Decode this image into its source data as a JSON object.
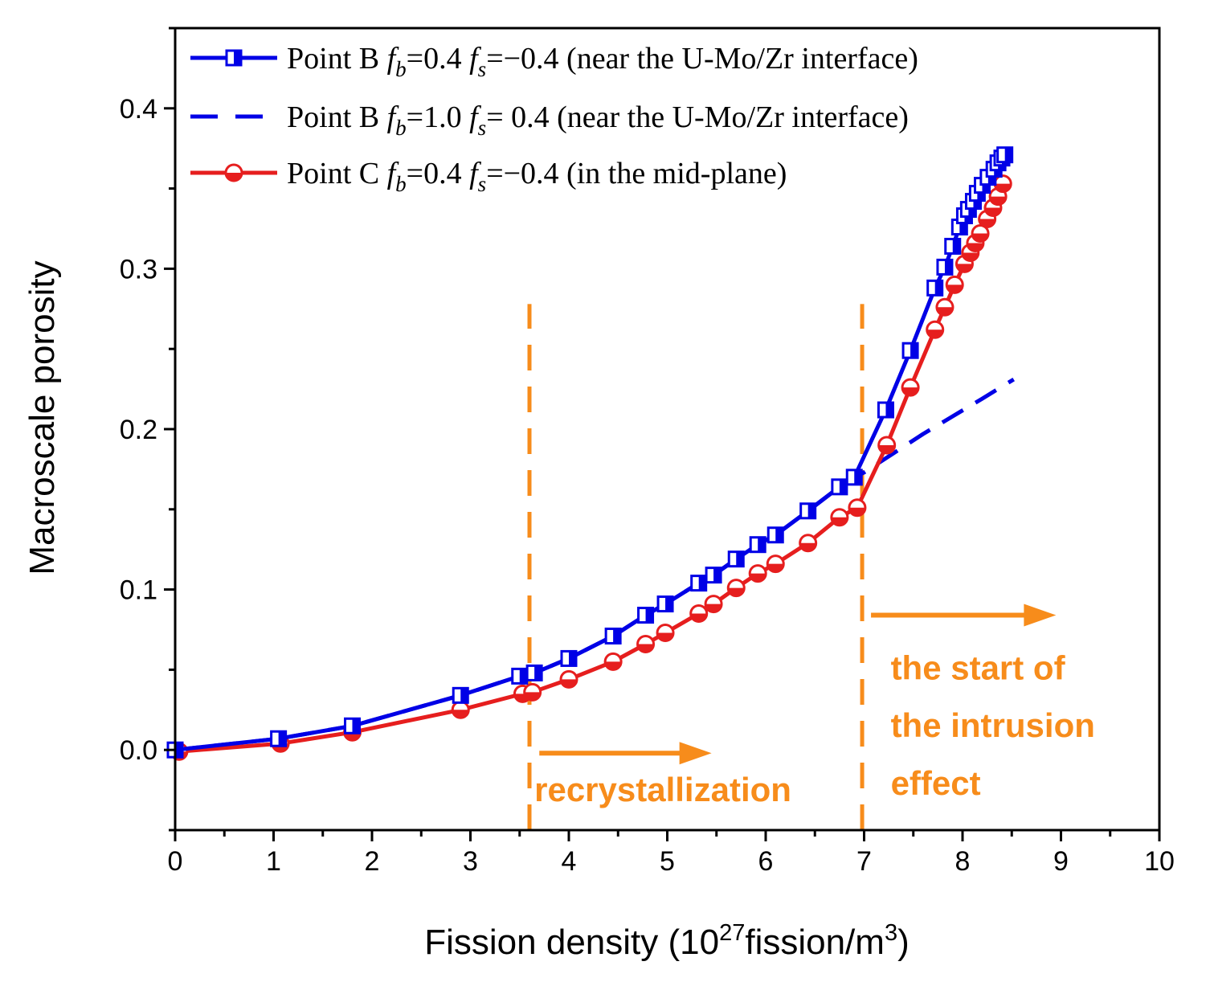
{
  "chart_data": {
    "type": "line",
    "xlabel": "Fission density (10",
    "xlabel_sup": "27",
    "xlabel_rest": "fission/m",
    "xlabel_sup2": "3",
    "xlabel_end": ")",
    "ylabel": "Macroscale porosity",
    "xlim": [
      0,
      10
    ],
    "ylim": [
      -0.05,
      0.45
    ],
    "xticks": [
      "0",
      "1",
      "2",
      "3",
      "4",
      "5",
      "6",
      "7",
      "8",
      "9",
      "10"
    ],
    "yticks": [
      "0.0",
      "0.1",
      "0.2",
      "0.3",
      "0.4"
    ],
    "series": [
      {
        "name": "point-b-fb04",
        "legend_prefix": "Point B ",
        "legend_mid": "=0.4 ",
        "legend_suffix": "=−0.4 (near the U-Mo/Zr interface)",
        "color": "#0000e6",
        "style": "solid",
        "marker": "square-half",
        "x": [
          0.0,
          1.05,
          1.8,
          2.9,
          3.5,
          3.65,
          4.0,
          4.45,
          4.78,
          4.98,
          5.32,
          5.47,
          5.7,
          5.92,
          6.1,
          6.43,
          6.75,
          6.9,
          7.22,
          7.47,
          7.72,
          7.82,
          7.9,
          7.97,
          8.02,
          8.06,
          8.11,
          8.15,
          8.2,
          8.26,
          8.32,
          8.36,
          8.4,
          8.43
        ],
        "y": [
          0.0,
          0.007,
          0.015,
          0.034,
          0.046,
          0.048,
          0.057,
          0.071,
          0.084,
          0.091,
          0.104,
          0.109,
          0.119,
          0.128,
          0.134,
          0.149,
          0.164,
          0.17,
          0.212,
          0.249,
          0.288,
          0.301,
          0.314,
          0.326,
          0.333,
          0.337,
          0.342,
          0.347,
          0.352,
          0.357,
          0.362,
          0.366,
          0.369,
          0.371
        ]
      },
      {
        "name": "point-b-fb10",
        "legend_prefix": "Point B ",
        "legend_mid": "=1.0 ",
        "legend_suffix": "=  0.4 (near the U-Mo/Zr interface)",
        "color": "#0000e6",
        "style": "dashed",
        "marker": "none",
        "x": [
          0.0,
          1.05,
          1.8,
          2.9,
          3.5,
          3.65,
          4.0,
          4.45,
          4.78,
          4.98,
          5.32,
          5.47,
          5.7,
          5.92,
          6.1,
          6.43,
          6.75,
          6.9,
          7.0,
          7.3,
          7.6,
          7.9,
          8.2,
          8.52
        ],
        "y": [
          0.0,
          0.007,
          0.015,
          0.034,
          0.046,
          0.048,
          0.057,
          0.071,
          0.084,
          0.091,
          0.104,
          0.109,
          0.119,
          0.128,
          0.134,
          0.149,
          0.164,
          0.17,
          0.173,
          0.185,
          0.197,
          0.208,
          0.219,
          0.231
        ]
      },
      {
        "name": "point-c-fb04",
        "legend_prefix": "Point C ",
        "legend_mid": "=0.4 ",
        "legend_suffix": "=−0.4 (in the mid-plane)",
        "color": "#e61e1e",
        "style": "solid",
        "marker": "circle-half",
        "x": [
          0.04,
          1.07,
          1.8,
          2.9,
          3.53,
          3.63,
          4.0,
          4.45,
          4.78,
          4.98,
          5.32,
          5.47,
          5.7,
          5.92,
          6.1,
          6.43,
          6.75,
          6.93,
          7.23,
          7.47,
          7.72,
          7.82,
          7.92,
          8.02,
          8.08,
          8.13,
          8.18,
          8.25,
          8.31,
          8.36,
          8.41
        ],
        "y": [
          -0.001,
          0.004,
          0.011,
          0.025,
          0.035,
          0.036,
          0.044,
          0.055,
          0.066,
          0.073,
          0.085,
          0.091,
          0.101,
          0.11,
          0.116,
          0.129,
          0.145,
          0.151,
          0.19,
          0.226,
          0.262,
          0.276,
          0.29,
          0.303,
          0.31,
          0.316,
          0.322,
          0.331,
          0.338,
          0.345,
          0.353
        ]
      }
    ],
    "vlines": [
      {
        "x": 3.6,
        "y_from": -0.05,
        "y_to": 0.278,
        "color": "#f78c1b"
      },
      {
        "x": 6.98,
        "y_from": -0.05,
        "y_to": 0.278,
        "color": "#f78c1b"
      }
    ],
    "arrows": [
      {
        "x_from": 3.7,
        "x_to": 5.45,
        "y": -0.002,
        "color": "#f78c1b"
      },
      {
        "x_from": 7.07,
        "x_to": 8.95,
        "y": 0.084,
        "color": "#f78c1b"
      }
    ],
    "annotations": [
      {
        "name": "recrystallization-label",
        "text": "recrystallization",
        "x": 3.65,
        "y": -0.032
      },
      {
        "name": "intrusion-label-line1",
        "text": "the start of",
        "x": 7.27,
        "y": 0.044
      },
      {
        "name": "intrusion-label-line2",
        "text": "the intrusion",
        "x": 7.27,
        "y": 0.008
      },
      {
        "name": "intrusion-label-line3",
        "text": "effect",
        "x": 7.27,
        "y": -0.028
      }
    ],
    "legend_position": "top-left",
    "grid": false
  }
}
